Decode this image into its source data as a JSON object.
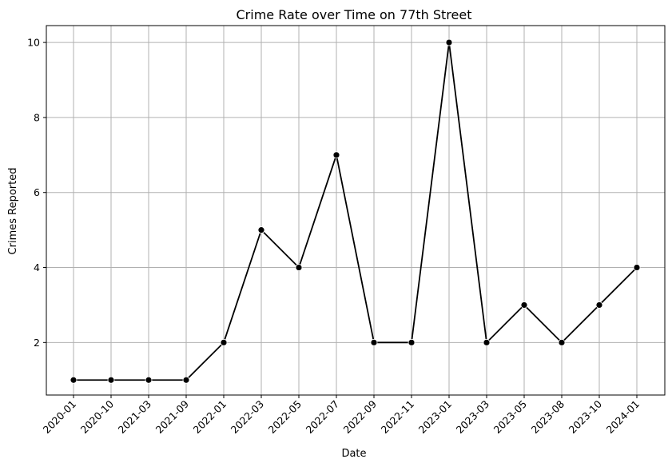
{
  "chart_data": {
    "type": "line",
    "title": "Crime Rate over Time on 77th Street",
    "xlabel": "Date",
    "ylabel": "Crimes Reported",
    "categories": [
      "2020-01",
      "2020-10",
      "2021-03",
      "2021-09",
      "2022-01",
      "2022-03",
      "2022-05",
      "2022-07",
      "2022-09",
      "2022-11",
      "2023-01",
      "2023-03",
      "2023-05",
      "2023-08",
      "2023-10",
      "2024-01"
    ],
    "series": [
      {
        "values": [
          1,
          1,
          1,
          1,
          2,
          5,
          4,
          7,
          2,
          2,
          10,
          2,
          3,
          2,
          3,
          4
        ],
        "color": "#000000",
        "marker": "circle"
      }
    ],
    "yticks": [
      2,
      4,
      6,
      8,
      10
    ],
    "ylim": [
      0.6,
      10.45
    ],
    "grid": true
  }
}
